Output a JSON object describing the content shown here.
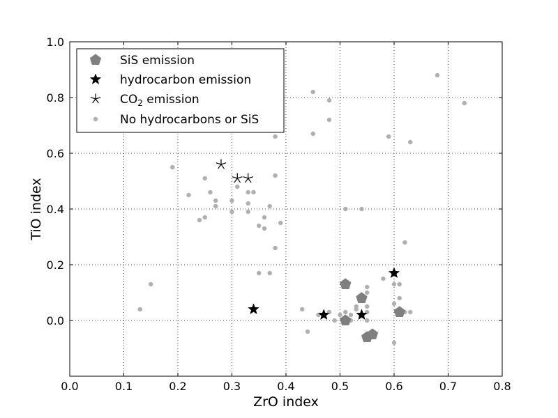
{
  "chart_data": {
    "type": "scatter",
    "title": "",
    "xlabel": "ZrO index",
    "ylabel": "TiO index",
    "xlim": [
      0.0,
      0.8
    ],
    "ylim": [
      -0.2,
      1.0
    ],
    "xticks": [
      "0.0",
      "0.1",
      "0.2",
      "0.3",
      "0.4",
      "0.5",
      "0.6",
      "0.7",
      "0.8"
    ],
    "yticks": [
      "0.0",
      "0.2",
      "0.4",
      "0.6",
      "0.8",
      "1.0"
    ],
    "grid": true,
    "legend_position": "top-left",
    "legend": [
      {
        "label": "SiS emission",
        "marker": "pentagon"
      },
      {
        "label": "hydrocarbon emission",
        "marker": "filled-star"
      },
      {
        "label_main": "CO",
        "label_sub": "2",
        "label_rest": " emission",
        "marker": "asterisk"
      },
      {
        "label": "No hydrocarbons or SiS",
        "marker": "small-dot"
      }
    ],
    "colors": {
      "sis": "#7f7f7f",
      "hydrocarbon": "#000000",
      "co2": "#000000",
      "none": "#b0b0b0"
    },
    "series": [
      {
        "name": "SiS emission",
        "marker": "pentagon",
        "points": [
          [
            0.51,
            0.13
          ],
          [
            0.54,
            0.08
          ],
          [
            0.51,
            0.0
          ],
          [
            0.55,
            -0.06
          ],
          [
            0.56,
            -0.05
          ],
          [
            0.61,
            0.03
          ]
        ]
      },
      {
        "name": "hydrocarbon emission",
        "marker": "filled-star",
        "points": [
          [
            0.34,
            0.04
          ],
          [
            0.47,
            0.02
          ],
          [
            0.54,
            0.02
          ],
          [
            0.6,
            0.17
          ]
        ]
      },
      {
        "name": "CO2 emission",
        "marker": "asterisk",
        "points": [
          [
            0.28,
            0.56
          ],
          [
            0.31,
            0.51
          ],
          [
            0.33,
            0.51
          ]
        ]
      },
      {
        "name": "No hydrocarbons or SiS",
        "marker": "small-dot",
        "points": [
          [
            0.13,
            0.04
          ],
          [
            0.15,
            0.13
          ],
          [
            0.19,
            0.55
          ],
          [
            0.22,
            0.45
          ],
          [
            0.24,
            0.36
          ],
          [
            0.25,
            0.37
          ],
          [
            0.25,
            0.51
          ],
          [
            0.26,
            0.46
          ],
          [
            0.27,
            0.43
          ],
          [
            0.27,
            0.41
          ],
          [
            0.3,
            0.43
          ],
          [
            0.3,
            0.39
          ],
          [
            0.31,
            0.48
          ],
          [
            0.33,
            0.46
          ],
          [
            0.33,
            0.42
          ],
          [
            0.33,
            0.39
          ],
          [
            0.34,
            0.46
          ],
          [
            0.35,
            0.34
          ],
          [
            0.35,
            0.17
          ],
          [
            0.36,
            0.37
          ],
          [
            0.36,
            0.33
          ],
          [
            0.37,
            0.41
          ],
          [
            0.37,
            0.17
          ],
          [
            0.38,
            0.66
          ],
          [
            0.38,
            0.52
          ],
          [
            0.38,
            0.26
          ],
          [
            0.39,
            0.35
          ],
          [
            0.43,
            0.04
          ],
          [
            0.44,
            -0.04
          ],
          [
            0.45,
            0.82
          ],
          [
            0.45,
            0.67
          ],
          [
            0.46,
            0.02
          ],
          [
            0.48,
            0.79
          ],
          [
            0.48,
            0.72
          ],
          [
            0.48,
            0.03
          ],
          [
            0.49,
            0.0
          ],
          [
            0.5,
            0.02
          ],
          [
            0.51,
            0.4
          ],
          [
            0.51,
            0.03
          ],
          [
            0.52,
            0.0
          ],
          [
            0.52,
            0.02
          ],
          [
            0.53,
            0.05
          ],
          [
            0.53,
            0.04
          ],
          [
            0.54,
            0.4
          ],
          [
            0.55,
            0.12
          ],
          [
            0.55,
            0.1
          ],
          [
            0.55,
            0.05
          ],
          [
            0.55,
            0.03
          ],
          [
            0.55,
            0.0
          ],
          [
            0.58,
            0.15
          ],
          [
            0.59,
            0.66
          ],
          [
            0.6,
            0.13
          ],
          [
            0.6,
            0.06
          ],
          [
            0.6,
            -0.08
          ],
          [
            0.61,
            0.13
          ],
          [
            0.61,
            0.08
          ],
          [
            0.62,
            0.03
          ],
          [
            0.62,
            0.28
          ],
          [
            0.63,
            0.64
          ],
          [
            0.63,
            0.03
          ],
          [
            0.68,
            0.88
          ],
          [
            0.73,
            0.78
          ]
        ]
      }
    ]
  }
}
